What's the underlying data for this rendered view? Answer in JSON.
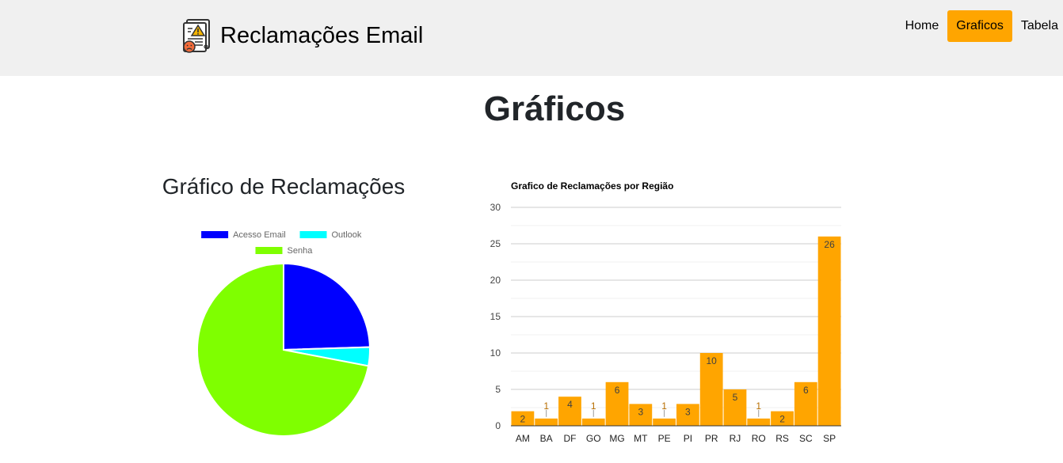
{
  "header": {
    "brand": "Reclamações Email",
    "nav": {
      "home": "Home",
      "graficos": "Graficos",
      "tabela": "Tabela"
    },
    "active_color": "#ffa500",
    "logo_icon": "complaint-document-icon"
  },
  "page_title": "Gráficos",
  "chart_data": [
    {
      "type": "pie",
      "title": "Gráfico de Reclamações",
      "labels": [
        "Acesso Email",
        "Outlook",
        "Senha"
      ],
      "values": [
        24.5,
        3.5,
        72
      ],
      "colors": [
        "#0000ff",
        "#00ffff",
        "#7fff00"
      ],
      "legend": "top"
    },
    {
      "type": "bar",
      "title": "Grafico de Reclamações por Região",
      "categories": [
        "AM",
        "BA",
        "DF",
        "GO",
        "MG",
        "MT",
        "PE",
        "PI",
        "PR",
        "RJ",
        "RO",
        "RS",
        "SC",
        "SP"
      ],
      "values": [
        2,
        1,
        4,
        1,
        6,
        3,
        1,
        3,
        10,
        5,
        1,
        2,
        6,
        26
      ],
      "value_labels": [
        "2",
        "1",
        "4",
        "1",
        "6",
        "3",
        "1",
        "3",
        "10",
        "5",
        "1",
        "2",
        "6",
        "26"
      ],
      "yticks": [
        "0",
        "5",
        "10",
        "15",
        "20",
        "25",
        "30"
      ],
      "ylim": [
        0,
        30
      ],
      "color": "#ffa500",
      "grid": true
    }
  ]
}
